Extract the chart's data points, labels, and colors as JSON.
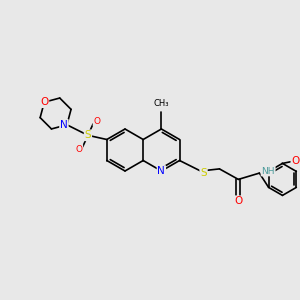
{
  "background_color": "#e8e8e8",
  "bond_color": "#000000",
  "atom_colors": {
    "N": "#0000ff",
    "O": "#ff0000",
    "S": "#cccc00",
    "C": "#000000",
    "H": "#4a9a9a"
  },
  "font_size": 6.5,
  "line_width": 1.2
}
